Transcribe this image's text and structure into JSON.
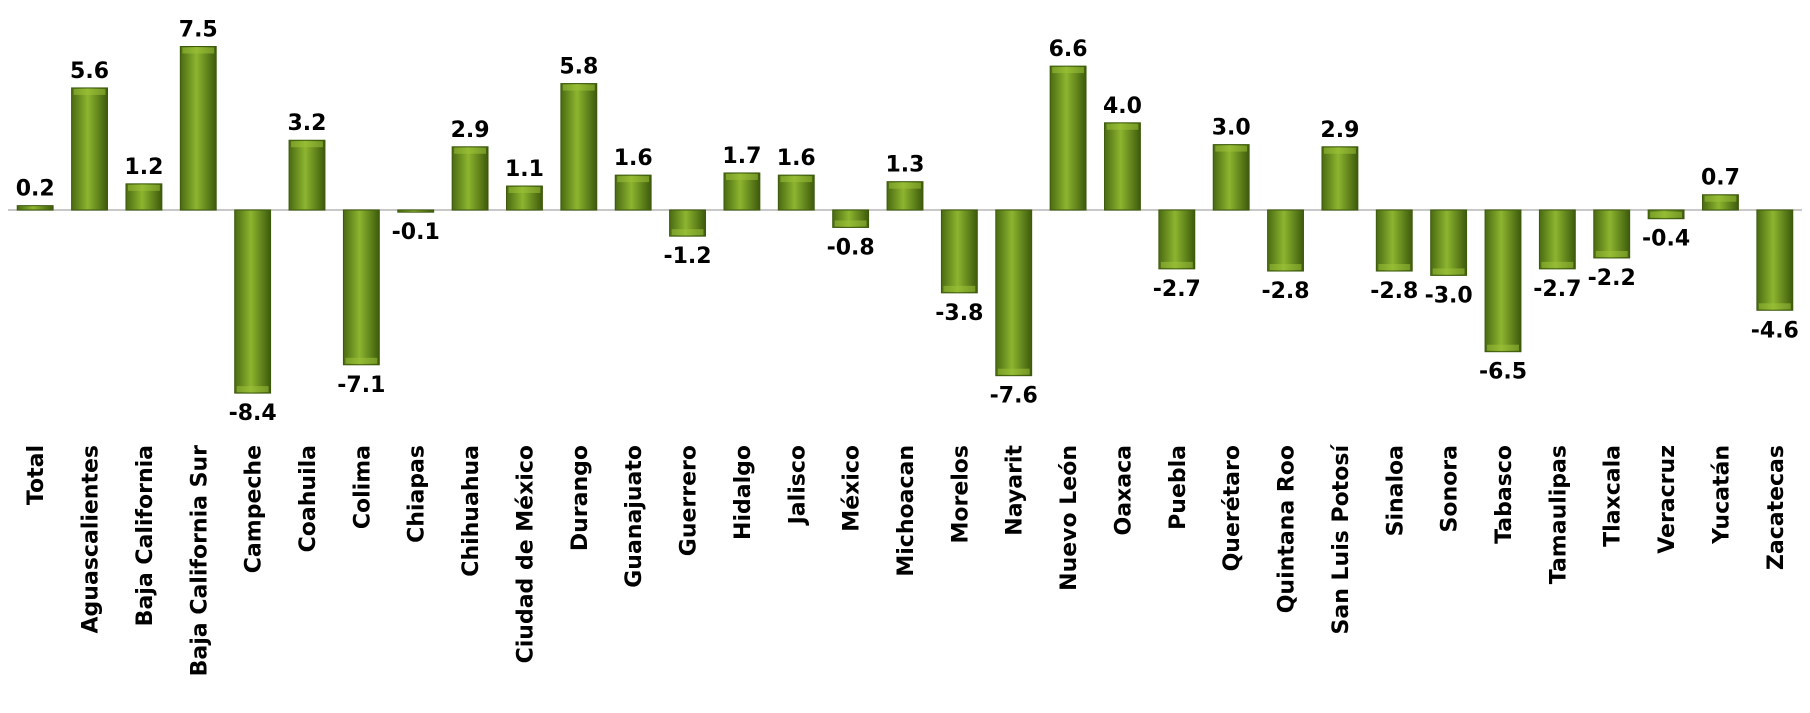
{
  "chart_data": {
    "type": "bar",
    "title": "",
    "xlabel": "",
    "ylabel": "",
    "ylim": [
      -9,
      8
    ],
    "grid": false,
    "legend": "none",
    "categories": [
      "Total",
      "Aguascalientes",
      "Baja California",
      "Baja California Sur",
      "Campeche",
      "Coahuila",
      "Colima",
      "Chiapas",
      "Chihuahua",
      "Ciudad de México",
      "Durango",
      "Guanajuato",
      "Guerrero",
      "Hidalgo",
      "Jalisco",
      "México",
      "Michoacan",
      "Morelos",
      "Nayarit",
      "Nuevo León",
      "Oaxaca",
      "Puebla",
      "Querétaro",
      "Quintana Roo",
      "San Luis Potosí",
      "Sinaloa",
      "Sonora",
      "Tabasco",
      "Tamaulipas",
      "Tlaxcala",
      "Veracruz",
      "Yucatán",
      "Zacatecas"
    ],
    "values": [
      0.2,
      5.6,
      1.2,
      7.5,
      -8.4,
      3.2,
      -7.1,
      -0.1,
      2.9,
      1.1,
      5.8,
      1.6,
      -1.2,
      1.7,
      1.6,
      -0.8,
      1.3,
      -3.8,
      -7.6,
      6.6,
      4.0,
      -2.7,
      3.0,
      -2.8,
      2.9,
      -2.8,
      -3.0,
      -6.5,
      -2.7,
      -2.2,
      -0.4,
      0.7,
      -4.6
    ],
    "value_labels": [
      "0.2",
      "5.6",
      "1.2",
      "7.5",
      "-8.4",
      "3.2",
      "-7.1",
      "-0.1",
      "2.9",
      "1.1",
      "5.8",
      "1.6",
      "-1.2",
      "1.7",
      "1.6",
      "-0.8",
      "1.3",
      "-3.8",
      "-7.6",
      "6.6",
      "4.0",
      "-2.7",
      "3.0",
      "-2.8",
      "2.9",
      "-2.8",
      "-3.0",
      "-6.5",
      "-2.7",
      "-2.2",
      "-0.4",
      "0.7",
      "-4.6"
    ],
    "colors": {
      "bar": "#6b8e23",
      "bar_light": "#9cc238",
      "bar_dark": "#3d5a0c",
      "axis": "#c8c8c8"
    }
  }
}
